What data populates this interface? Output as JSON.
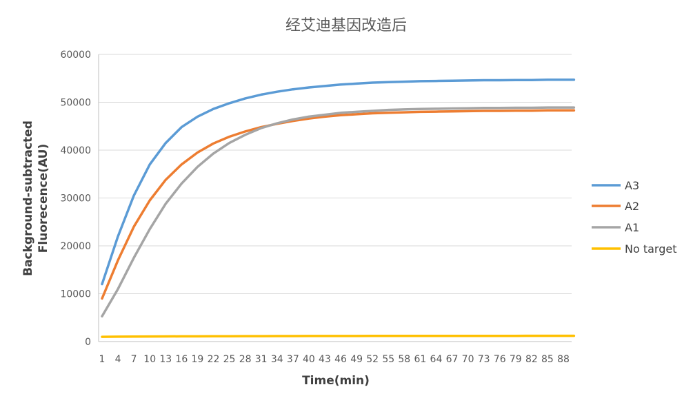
{
  "chart_data": {
    "type": "line",
    "title": "经艾迪基因改造后",
    "xlabel": "Time(min)",
    "ylabel_lines": [
      "Background-subtracted",
      "Fluorecence(AU)"
    ],
    "ylim": [
      0,
      60000
    ],
    "yticks": [
      0,
      10000,
      20000,
      30000,
      40000,
      50000,
      60000
    ],
    "xlim": [
      1,
      90
    ],
    "xticks": [
      1,
      4,
      7,
      10,
      13,
      16,
      19,
      22,
      25,
      28,
      31,
      34,
      37,
      40,
      43,
      46,
      49,
      52,
      55,
      58,
      61,
      64,
      67,
      70,
      73,
      76,
      79,
      82,
      85,
      88
    ],
    "grid": "horizontal",
    "legend_position": "right",
    "x": [
      1,
      4,
      7,
      10,
      13,
      16,
      19,
      22,
      25,
      28,
      31,
      34,
      37,
      40,
      43,
      46,
      49,
      52,
      55,
      58,
      61,
      64,
      67,
      70,
      73,
      76,
      79,
      82,
      85,
      88,
      90
    ],
    "series": [
      {
        "name": "A3",
        "color": "#5B9BD5",
        "values": [
          12000,
          22000,
          30500,
          37000,
          41500,
          44800,
          47000,
          48600,
          49800,
          50800,
          51600,
          52200,
          52700,
          53100,
          53400,
          53700,
          53900,
          54100,
          54200,
          54300,
          54400,
          54450,
          54500,
          54550,
          54600,
          54600,
          54650,
          54650,
          54700,
          54700,
          54700
        ]
      },
      {
        "name": "A2",
        "color": "#ED7D31",
        "values": [
          9000,
          17000,
          24000,
          29500,
          33800,
          37000,
          39500,
          41400,
          42800,
          43900,
          44800,
          45500,
          46100,
          46600,
          47000,
          47300,
          47500,
          47700,
          47800,
          47900,
          48000,
          48050,
          48100,
          48150,
          48200,
          48200,
          48250,
          48250,
          48300,
          48300,
          48300
        ]
      },
      {
        "name": "A1",
        "color": "#A5A5A5",
        "values": [
          5300,
          11000,
          17500,
          23500,
          28800,
          33000,
          36500,
          39300,
          41500,
          43200,
          44600,
          45600,
          46400,
          47000,
          47400,
          47800,
          48000,
          48200,
          48400,
          48500,
          48600,
          48650,
          48700,
          48750,
          48800,
          48800,
          48850,
          48850,
          48900,
          48900,
          48900
        ]
      },
      {
        "name": "No target",
        "color": "#FFC000",
        "values": [
          1000,
          1020,
          1040,
          1060,
          1080,
          1100,
          1100,
          1120,
          1120,
          1140,
          1140,
          1150,
          1150,
          1160,
          1160,
          1170,
          1170,
          1180,
          1180,
          1180,
          1190,
          1190,
          1190,
          1200,
          1200,
          1200,
          1200,
          1210,
          1210,
          1210,
          1210
        ]
      }
    ]
  }
}
